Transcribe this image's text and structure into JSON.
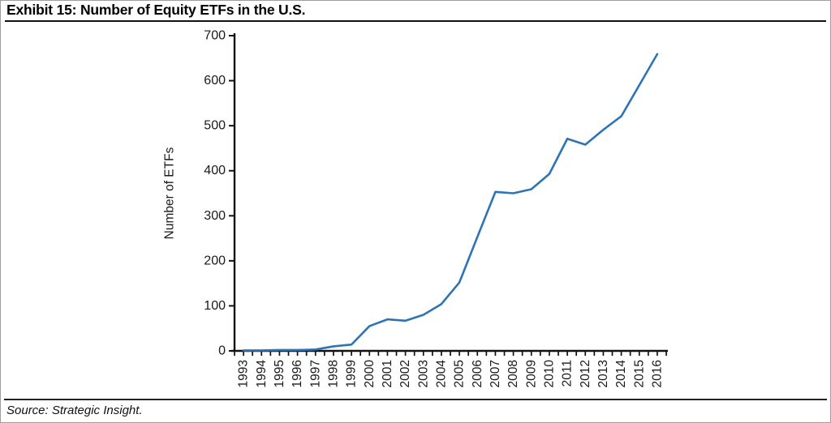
{
  "header": {
    "title": "Exhibit 15: Number of Equity ETFs in the U.S."
  },
  "footer": {
    "source": "Source: Strategic Insight."
  },
  "chart_data": {
    "type": "line",
    "title": "Exhibit 15: Number of Equity ETFs in the U.S.",
    "xlabel": "",
    "ylabel": "Number of ETFs",
    "categories": [
      "1993",
      "1994",
      "1995",
      "1996",
      "1997",
      "1998",
      "1999",
      "2000",
      "2001",
      "2002",
      "2003",
      "2004",
      "2005",
      "2006",
      "2007",
      "2008",
      "2009",
      "2010",
      "2011",
      "2012",
      "2013",
      "2014",
      "2015",
      "2016"
    ],
    "values": [
      1,
      1,
      2,
      2,
      3,
      10,
      14,
      55,
      70,
      67,
      80,
      104,
      152,
      253,
      353,
      350,
      359,
      393,
      471,
      458,
      491,
      521,
      590,
      659
    ],
    "ylim": [
      0,
      700
    ],
    "ytick_step": 100,
    "grid": false,
    "legend_position": "none",
    "line_color": "#2E74B4",
    "axis_color": "#111111",
    "text_color": "#1a1a1a"
  }
}
